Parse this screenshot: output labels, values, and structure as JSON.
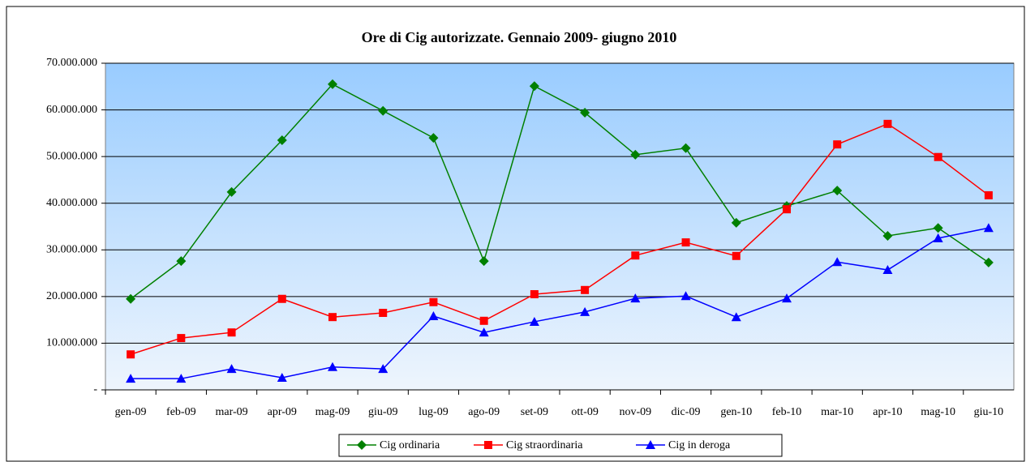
{
  "chart_data": {
    "type": "line",
    "title": "Ore di Cig autorizzate. Gennaio 2009- giugno 2010",
    "categories": [
      "gen-09",
      "feb-09",
      "mar-09",
      "apr-09",
      "mag-09",
      "giu-09",
      "lug-09",
      "ago-09",
      "set-09",
      "ott-09",
      "nov-09",
      "dic-09",
      "gen-10",
      "feb-10",
      "mar-10",
      "apr-10",
      "mag-10",
      "giu-10"
    ],
    "series": [
      {
        "name": "Cig ordinaria",
        "color": "#008000",
        "marker": "diamond",
        "values": [
          19500000,
          27600000,
          42400000,
          53500000,
          65500000,
          59800000,
          54000000,
          27600000,
          65100000,
          59400000,
          50400000,
          51800000,
          35800000,
          39400000,
          42700000,
          33000000,
          34700000,
          27300000
        ]
      },
      {
        "name": "Cig straordinaria",
        "color": "#ff0000",
        "marker": "square",
        "values": [
          7600000,
          11100000,
          12300000,
          19500000,
          15600000,
          16500000,
          18800000,
          14800000,
          20500000,
          21400000,
          28800000,
          31600000,
          28700000,
          38700000,
          52600000,
          57000000,
          49900000,
          41700000
        ]
      },
      {
        "name": "Cig in deroga",
        "color": "#0000ff",
        "marker": "triangle",
        "values": [
          2400000,
          2400000,
          4500000,
          2600000,
          4900000,
          4500000,
          15800000,
          12300000,
          14600000,
          16700000,
          19600000,
          20100000,
          15600000,
          19600000,
          27400000,
          25700000,
          32500000,
          34700000
        ]
      }
    ],
    "ylim": [
      0,
      70000000
    ],
    "yticks": [
      {
        "value": 0,
        "label": "-"
      },
      {
        "value": 10000000,
        "label": "10.000.000"
      },
      {
        "value": 20000000,
        "label": "20.000.000"
      },
      {
        "value": 30000000,
        "label": "30.000.000"
      },
      {
        "value": 40000000,
        "label": "40.000.000"
      },
      {
        "value": 50000000,
        "label": "50.000.000"
      },
      {
        "value": 60000000,
        "label": "60.000.000"
      },
      {
        "value": 70000000,
        "label": "70.000.000"
      }
    ],
    "grid": true,
    "legend": "bottom"
  }
}
